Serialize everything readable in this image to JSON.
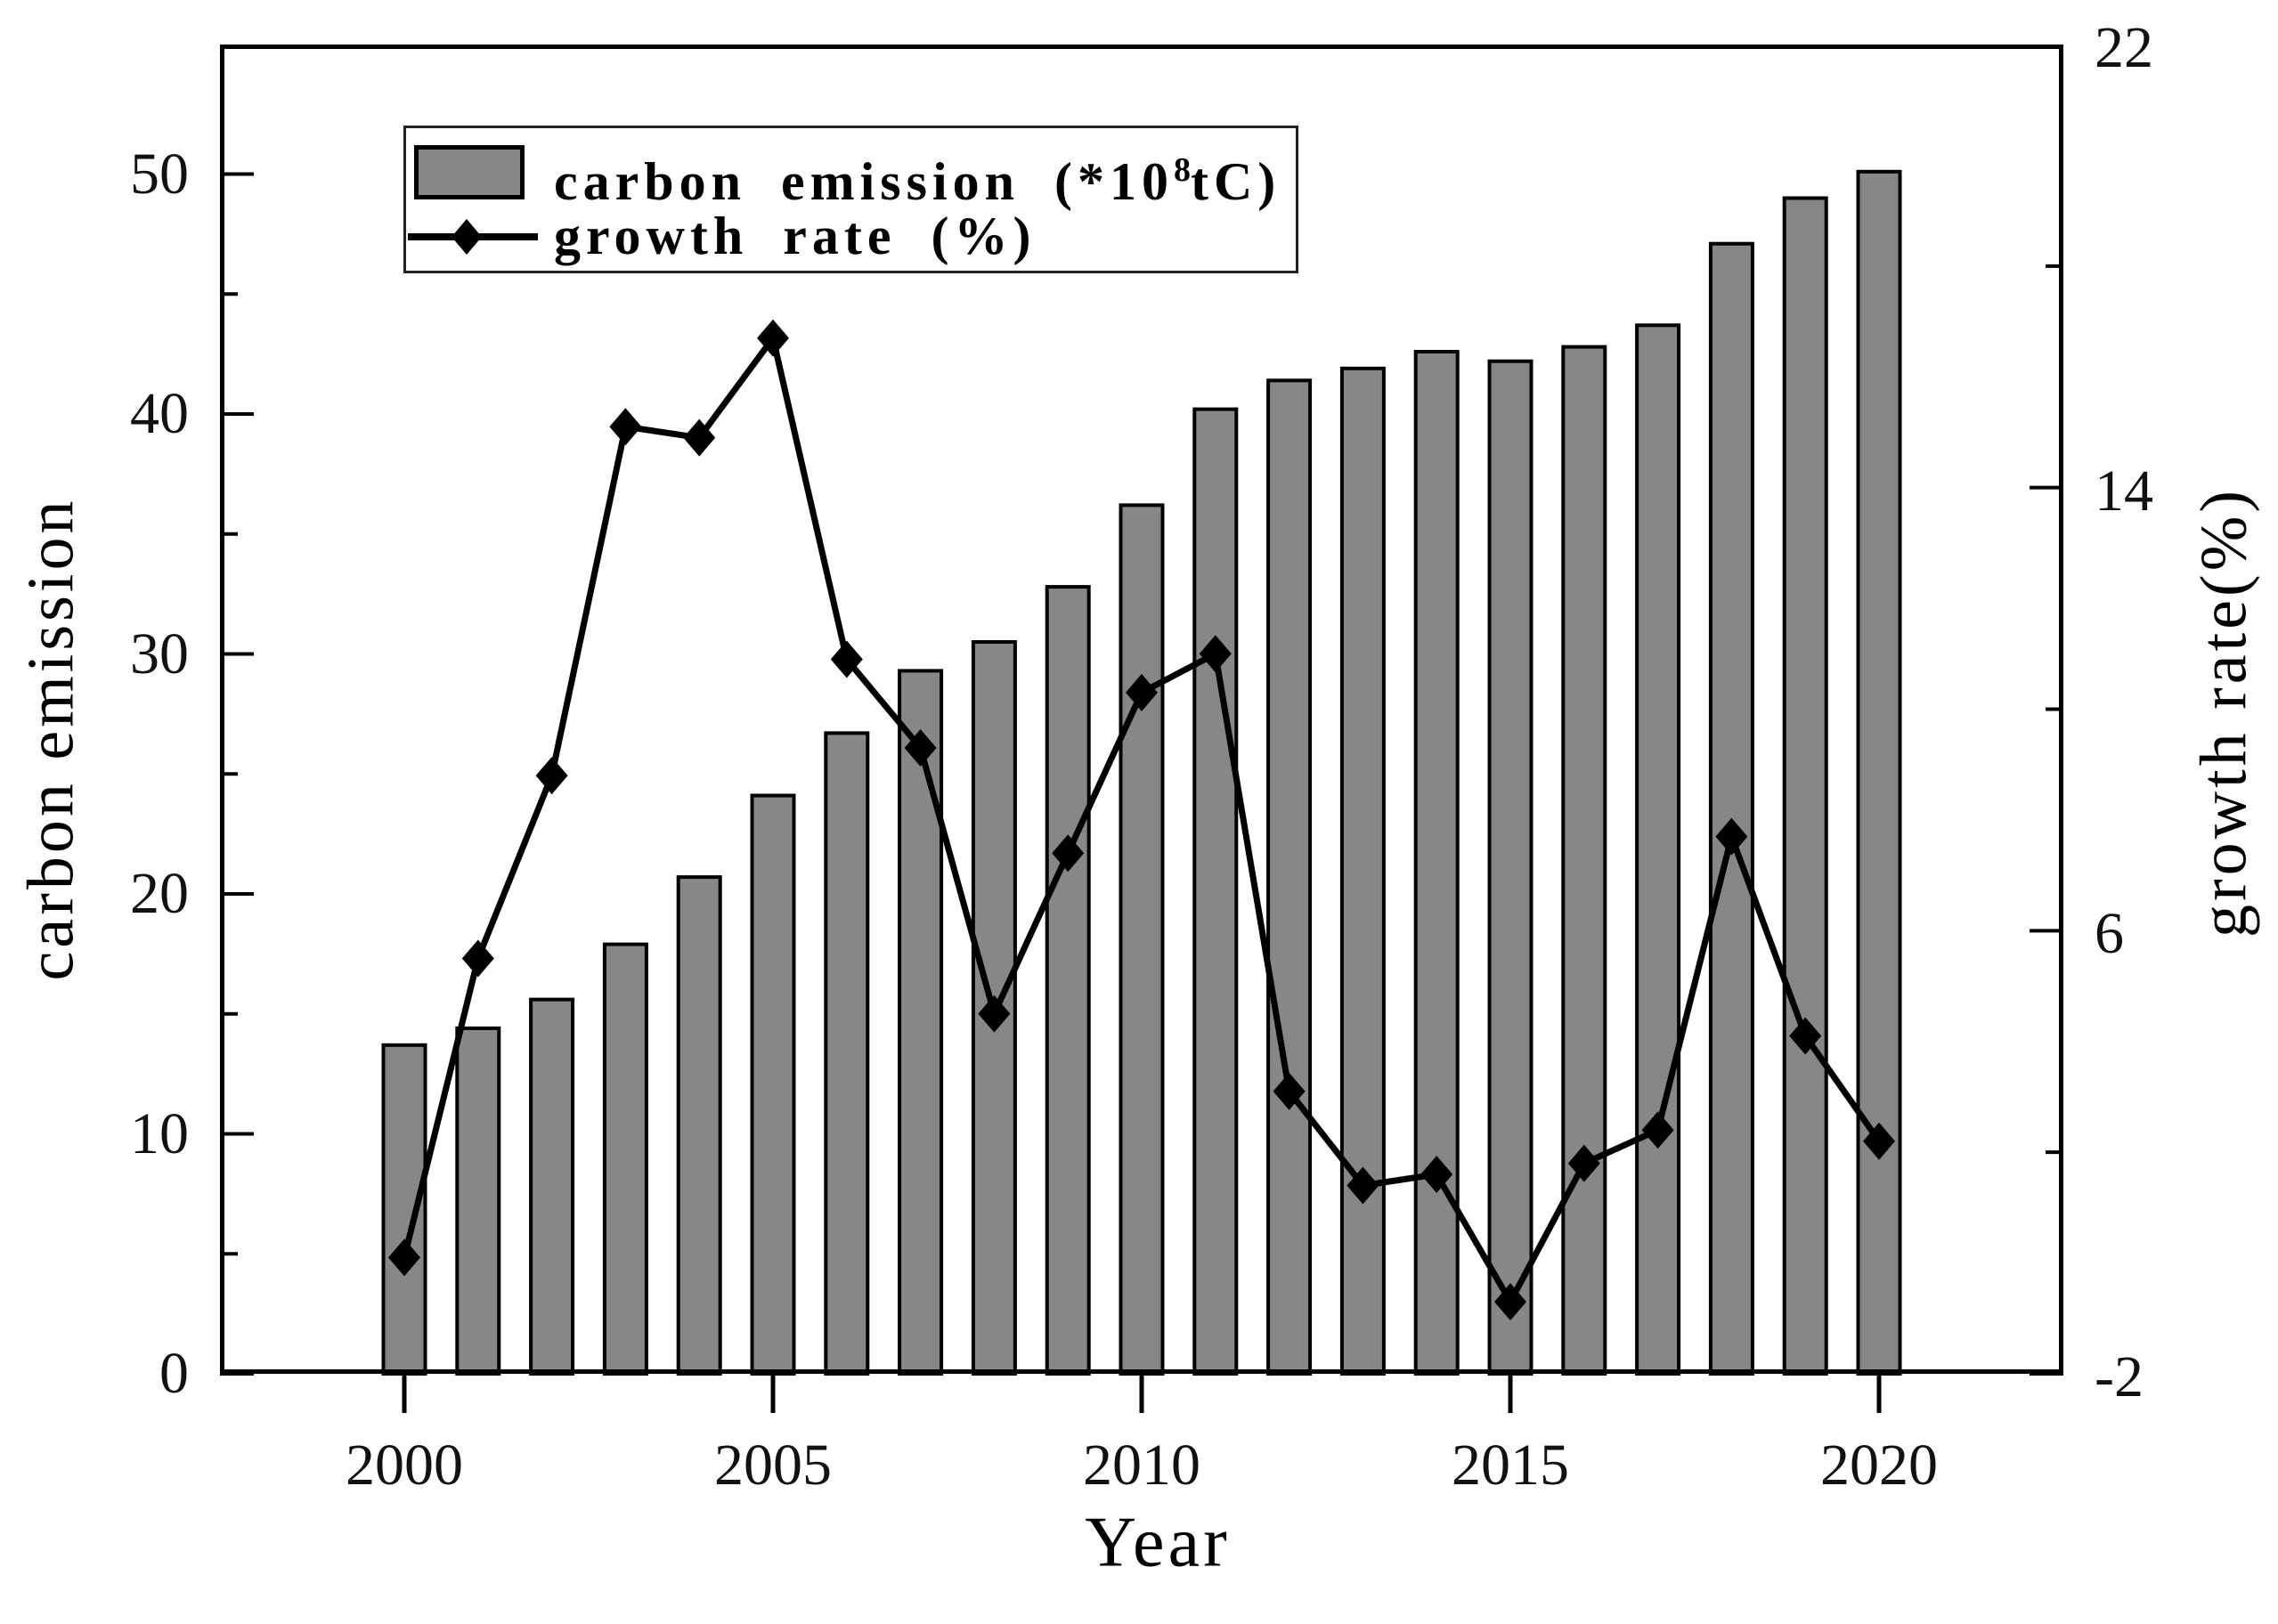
{
  "chart_data": {
    "type": "bar",
    "subtype": "dual-axis bar + line combo",
    "title": "",
    "categories": [
      2000,
      2001,
      2002,
      2003,
      2004,
      2005,
      2006,
      2007,
      2008,
      2009,
      2010,
      2011,
      2012,
      2013,
      2014,
      2015,
      2016,
      2017,
      2018,
      2019,
      2020
    ],
    "series": [
      {
        "name": "carbon emission (*10^8 tC)",
        "chart": "bar",
        "axis": "left",
        "color": "#878787",
        "edge_color": "#000000",
        "values": [
          13.7,
          14.4,
          15.6,
          17.9,
          20.7,
          24.1,
          26.7,
          29.3,
          30.5,
          32.8,
          36.2,
          40.2,
          41.4,
          41.9,
          42.6,
          42.2,
          42.8,
          43.7,
          47.1,
          49.0,
          50.1
        ]
      },
      {
        "name": "growth rate (%)",
        "chart": "line",
        "axis": "right",
        "color": "#000000",
        "marker": "diamond",
        "values": [
          0.1,
          5.5,
          8.8,
          15.1,
          14.9,
          16.7,
          10.9,
          9.3,
          4.5,
          7.4,
          10.3,
          11.0,
          3.1,
          1.4,
          1.6,
          -0.7,
          1.8,
          2.4,
          7.7,
          4.1,
          2.2
        ]
      }
    ],
    "xlabel": "Year",
    "ylabel_left": "carbon emission",
    "ylabel_right": "growth rate(%)",
    "xlim": [
      1997.5,
      2022.5
    ],
    "ylim_left": [
      0,
      55.4
    ],
    "ylim_right": [
      -2,
      22
    ],
    "x_ticks": [
      2000,
      2005,
      2010,
      2015,
      2020
    ],
    "left_ticks": [
      0,
      10,
      20,
      30,
      40,
      50
    ],
    "left_minor_ticks": [
      5,
      15,
      25,
      35,
      45
    ],
    "right_ticks": [
      22,
      14,
      6,
      -2
    ],
    "right_tick_labels": [
      "22",
      "14",
      "6",
      "-2"
    ],
    "right_minor_ticks": [
      18,
      10,
      2
    ],
    "grid": false,
    "legend_position": "upper left",
    "legend": [
      {
        "prefix": "carbon emission (*10",
        "sup": "8",
        "suffix": "tC)"
      },
      {
        "label": "growth rate (%)"
      }
    ],
    "colors": {
      "bar_fill": "#878787",
      "bar_edge": "#000000",
      "line": "#000000",
      "frame": "#000000",
      "background": "#ffffff"
    }
  }
}
